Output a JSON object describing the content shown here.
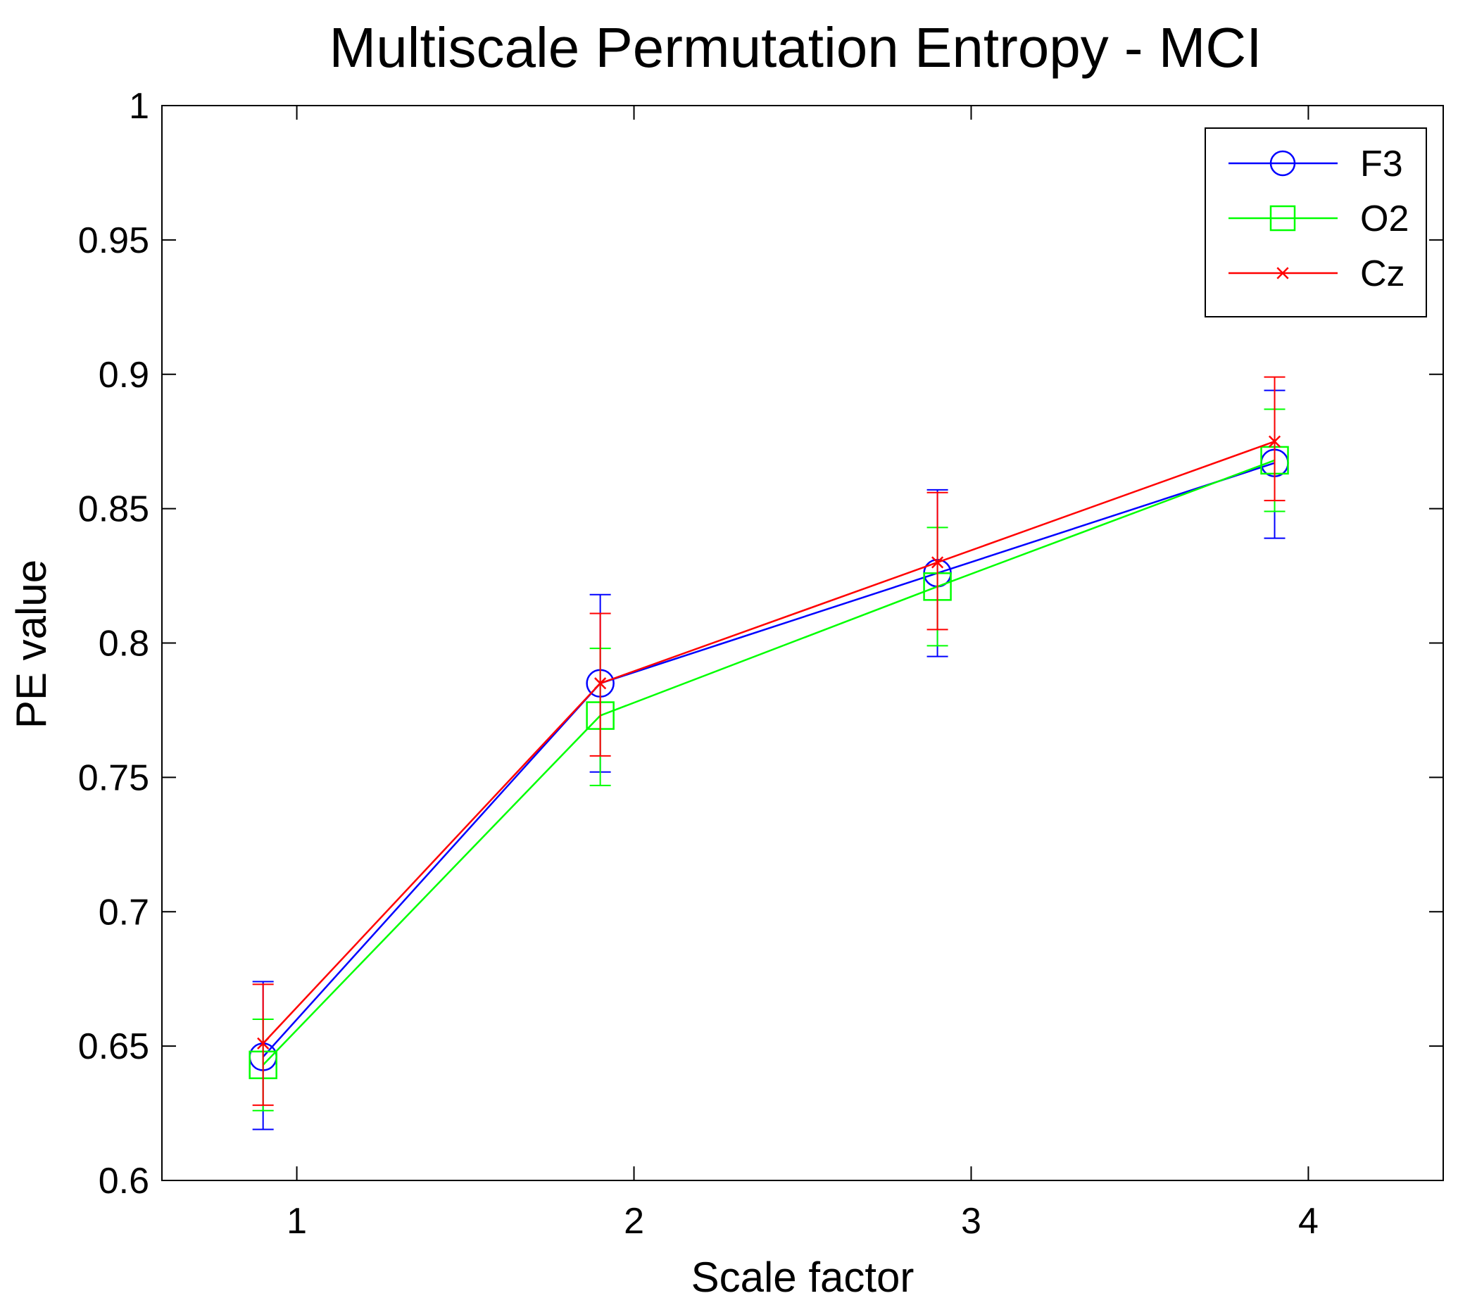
{
  "chart_data": {
    "type": "line",
    "title": "Multiscale Permutation Entropy - MCI",
    "xlabel": "Scale factor",
    "ylabel": "PE value",
    "xlim": [
      0.6,
      4.4
    ],
    "ylim": [
      0.6,
      1.0
    ],
    "xticks": [
      1,
      2,
      3,
      4
    ],
    "xtick_labels": [
      "1",
      "2",
      "3",
      "4"
    ],
    "yticks": [
      0.6,
      0.65,
      0.7,
      0.75,
      0.8,
      0.85,
      0.9,
      0.95,
      1.0
    ],
    "ytick_labels": [
      "0.6",
      "0.65",
      "0.7",
      "0.75",
      "0.8",
      "0.85",
      "0.9",
      "0.95",
      "1"
    ],
    "grid": false,
    "legend_position": "top-right",
    "x": [
      0.9,
      1.9,
      2.9,
      3.9
    ],
    "series": [
      {
        "name": "F3",
        "color": "#0000ff",
        "marker": "circle",
        "values": [
          0.646,
          0.785,
          0.826,
          0.867
        ],
        "err_low": [
          0.619,
          0.752,
          0.795,
          0.839
        ],
        "err_high": [
          0.674,
          0.818,
          0.857,
          0.894
        ]
      },
      {
        "name": "O2",
        "color": "#00ff00",
        "marker": "square",
        "values": [
          0.643,
          0.773,
          0.821,
          0.868
        ],
        "err_low": [
          0.626,
          0.747,
          0.799,
          0.849
        ],
        "err_high": [
          0.66,
          0.798,
          0.843,
          0.887
        ]
      },
      {
        "name": "Cz",
        "color": "#ff0000",
        "marker": "x",
        "values": [
          0.651,
          0.785,
          0.83,
          0.875
        ],
        "err_low": [
          0.628,
          0.758,
          0.805,
          0.853
        ],
        "err_high": [
          0.673,
          0.811,
          0.856,
          0.899
        ]
      }
    ]
  }
}
